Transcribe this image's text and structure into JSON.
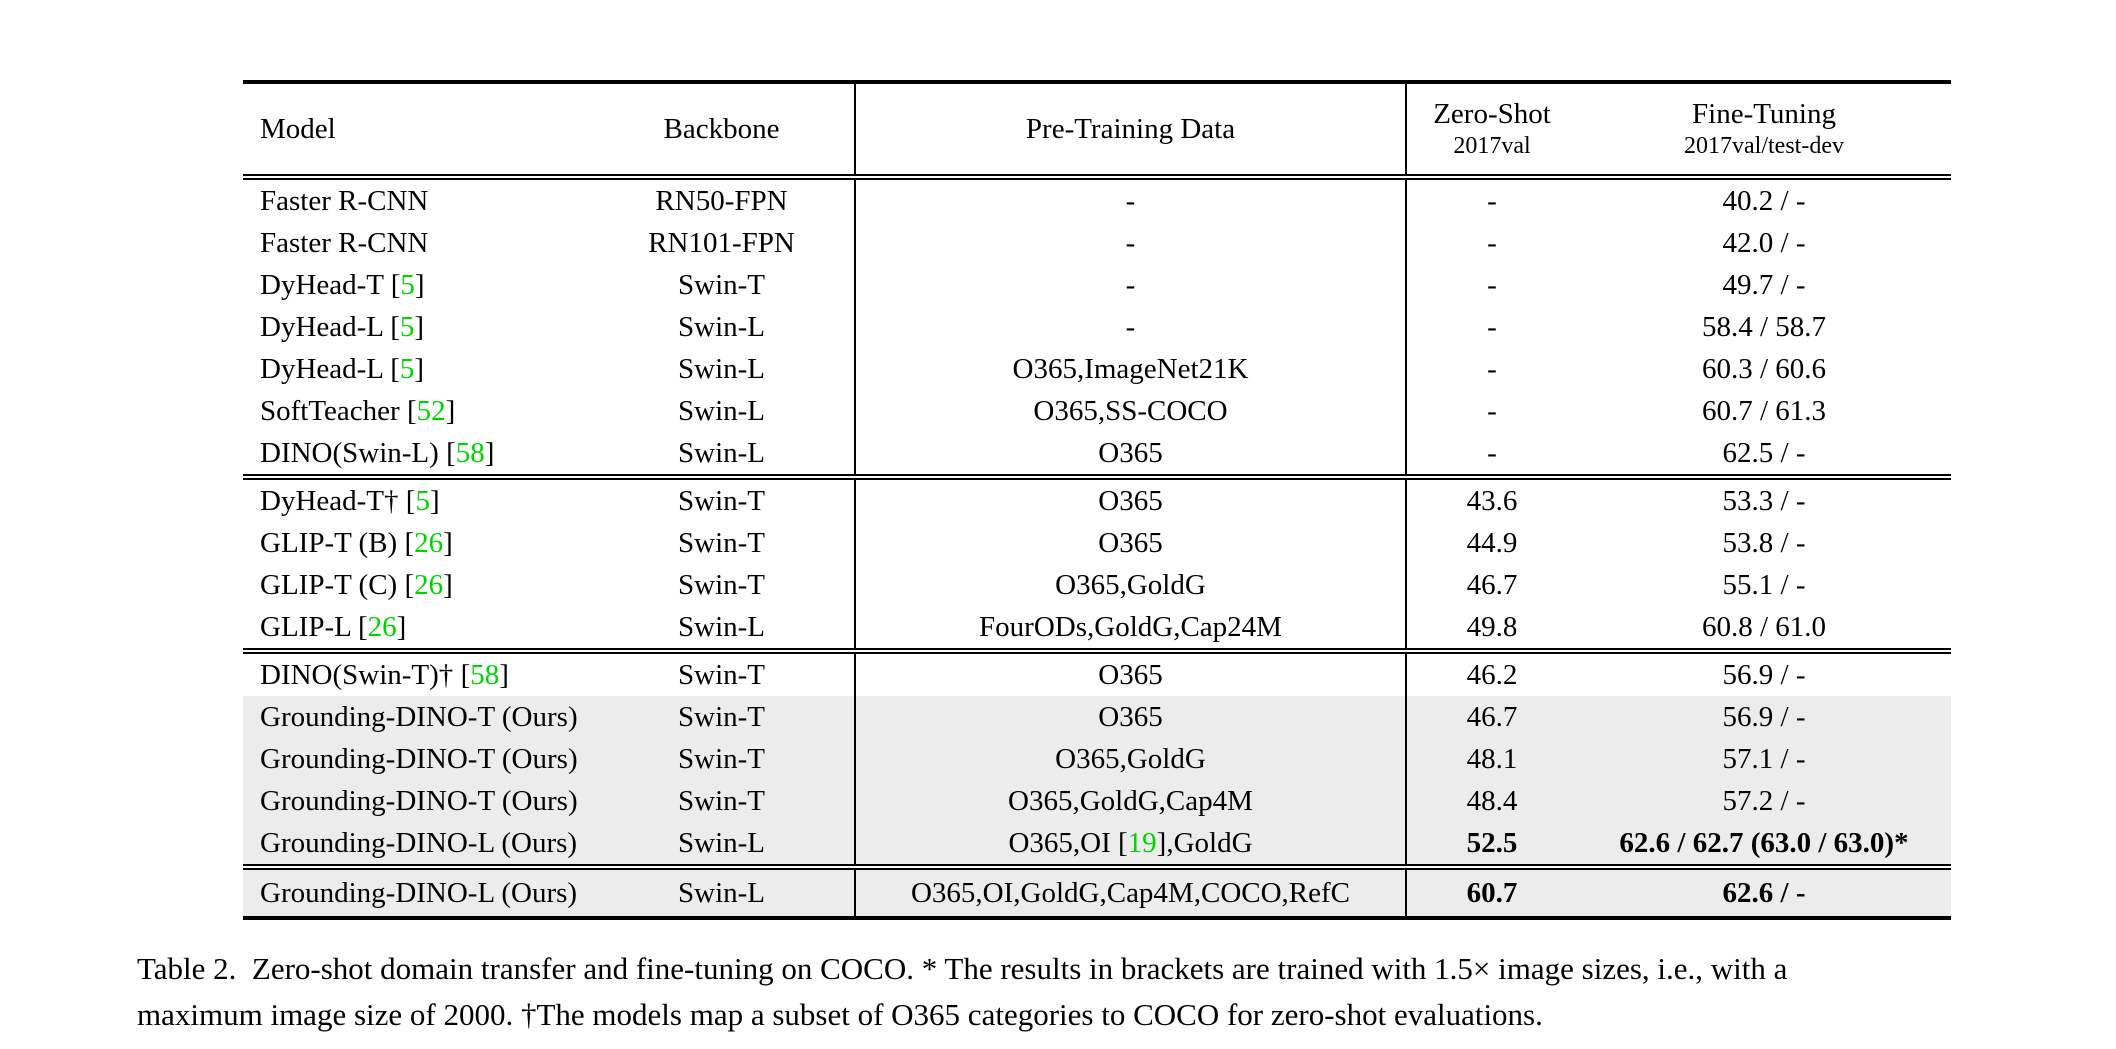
{
  "colors": {
    "highlight_row": "#ececec",
    "citation_green": "#00d400",
    "rule_black": "#000000",
    "page_background": "#ffffff"
  },
  "table": {
    "header": {
      "model": "Model",
      "backbone": "Backbone",
      "pretrain": "Pre-Training Data",
      "zeroshot_title": "Zero-Shot",
      "zeroshot_sub": "2017val",
      "finetune_title": "Fine-Tuning",
      "finetune_sub": "2017val/test-dev"
    },
    "blocks": [
      {
        "rows": [
          {
            "model": "Faster R-CNN",
            "backbone": "RN50-FPN",
            "pretrain": "-",
            "zeroshot": "-",
            "finetune": "40.2 / -",
            "highlight": false,
            "bold_metrics": false
          },
          {
            "model": "Faster R-CNN",
            "backbone": "RN101-FPN",
            "pretrain": "-",
            "zeroshot": "-",
            "finetune": "42.0 / -",
            "highlight": false,
            "bold_metrics": false
          },
          {
            "model": "DyHead-T [5]",
            "backbone": "Swin-T",
            "pretrain": "-",
            "zeroshot": "-",
            "finetune": "49.7 / -",
            "highlight": false,
            "bold_metrics": false
          },
          {
            "model": "DyHead-L [5]",
            "backbone": "Swin-L",
            "pretrain": "-",
            "zeroshot": "-",
            "finetune": "58.4 / 58.7",
            "highlight": false,
            "bold_metrics": false
          },
          {
            "model": "DyHead-L [5]",
            "backbone": "Swin-L",
            "pretrain": "O365,ImageNet21K",
            "zeroshot": "-",
            "finetune": "60.3 / 60.6",
            "highlight": false,
            "bold_metrics": false
          },
          {
            "model": "SoftTeacher [52]",
            "backbone": "Swin-L",
            "pretrain": "O365,SS-COCO",
            "zeroshot": "-",
            "finetune": "60.7 / 61.3",
            "highlight": false,
            "bold_metrics": false
          },
          {
            "model": "DINO(Swin-L) [58]",
            "backbone": "Swin-L",
            "pretrain": "O365",
            "zeroshot": "-",
            "finetune": "62.5 / -",
            "highlight": false,
            "bold_metrics": false
          }
        ]
      },
      {
        "rows": [
          {
            "model": "DyHead-T† [5]",
            "backbone": "Swin-T",
            "pretrain": "O365",
            "zeroshot": "43.6",
            "finetune": "53.3 / -",
            "highlight": false,
            "bold_metrics": false
          },
          {
            "model": "GLIP-T (B) [26]",
            "backbone": "Swin-T",
            "pretrain": "O365",
            "zeroshot": "44.9",
            "finetune": "53.8 / -",
            "highlight": false,
            "bold_metrics": false
          },
          {
            "model": "GLIP-T (C) [26]",
            "backbone": "Swin-T",
            "pretrain": "O365,GoldG",
            "zeroshot": "46.7",
            "finetune": "55.1 / -",
            "highlight": false,
            "bold_metrics": false
          },
          {
            "model": "GLIP-L [26]",
            "backbone": "Swin-L",
            "pretrain": "FourODs,GoldG,Cap24M",
            "zeroshot": "49.8",
            "finetune": "60.8 / 61.0",
            "highlight": false,
            "bold_metrics": false
          }
        ]
      },
      {
        "rows": [
          {
            "model": "DINO(Swin-T)† [58]",
            "backbone": "Swin-T",
            "pretrain": "O365",
            "zeroshot": "46.2",
            "finetune": "56.9 / -",
            "highlight": false,
            "bold_metrics": false
          },
          {
            "model": "Grounding-DINO-T (Ours)",
            "backbone": "Swin-T",
            "pretrain": "O365",
            "zeroshot": "46.7",
            "finetune": "56.9 / -",
            "highlight": true,
            "bold_metrics": false
          },
          {
            "model": "Grounding-DINO-T (Ours)",
            "backbone": "Swin-T",
            "pretrain": "O365,GoldG",
            "zeroshot": "48.1",
            "finetune": "57.1 / -",
            "highlight": true,
            "bold_metrics": false
          },
          {
            "model": "Grounding-DINO-T (Ours)",
            "backbone": "Swin-T",
            "pretrain": "O365,GoldG,Cap4M",
            "zeroshot": "48.4",
            "finetune": "57.2 / -",
            "highlight": true,
            "bold_metrics": false
          },
          {
            "model": "Grounding-DINO-L (Ours)",
            "backbone": "Swin-L",
            "pretrain": "O365,OI [19],GoldG",
            "zeroshot": "52.5",
            "finetune": "62.6 / 62.7 (63.0 / 63.0)*",
            "highlight": true,
            "bold_metrics": true
          }
        ]
      },
      {
        "rows": [
          {
            "model": "Grounding-DINO-L (Ours)",
            "backbone": "Swin-L",
            "pretrain": "O365,OI,GoldG,Cap4M,COCO,RefC",
            "zeroshot": "60.7",
            "finetune": "62.6 / -",
            "highlight": true,
            "bold_metrics": true
          }
        ]
      }
    ]
  },
  "caption": {
    "line1": "Table 2.  Zero-shot domain transfer and fine-tuning on COCO. * The results in brackets are trained with 1.5× image sizes, i.e., with a",
    "line2": "maximum image size of 2000. †The models map a subset of O365 categories to COCO for zero-shot evaluations."
  }
}
